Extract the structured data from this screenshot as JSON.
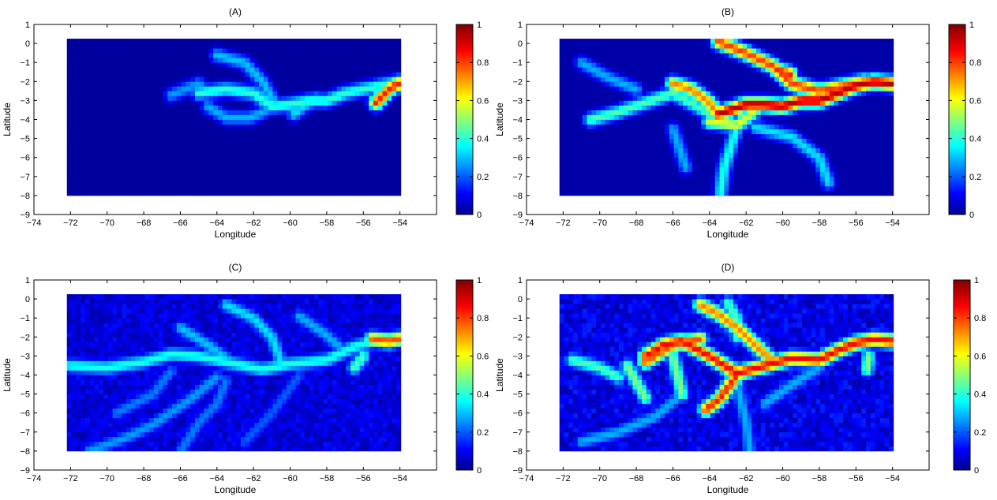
{
  "chart_data": [
    {
      "type": "heatmap",
      "title": "(A)",
      "xlabel": "Longitude",
      "ylabel": "Latitude",
      "xlim": [
        -74,
        -52
      ],
      "ylim": [
        -9,
        1
      ],
      "xticks": [
        -74,
        -72,
        -70,
        -68,
        -66,
        -64,
        -62,
        -60,
        -58,
        -56,
        -54
      ],
      "yticks": [
        1,
        0,
        -1,
        -2,
        -3,
        -4,
        -5,
        -6,
        -7,
        -8,
        -9
      ],
      "colorbar": {
        "range": [
          0,
          1
        ],
        "ticks": [
          "0",
          "0.2",
          "0.4",
          "0.6",
          "0.8",
          "1"
        ]
      },
      "grid": false,
      "domain_extent": {
        "lon": [
          -72.2,
          -54
        ],
        "lat": [
          -8,
          0.2
        ]
      },
      "background_value": 0.03,
      "noise": 0.0,
      "features": [
        {
          "lon": [
            -65,
            -63.5,
            -62,
            -61,
            -60,
            -59,
            -58,
            -57,
            -56,
            -55,
            -54.1
          ],
          "lat": [
            -2.6,
            -2.4,
            -2.6,
            -3.3,
            -3.2,
            -3.0,
            -3.0,
            -2.6,
            -2.4,
            -2.2,
            -2.0
          ],
          "value": 0.42
        },
        {
          "lon": [
            -64.5,
            -63.5,
            -62.2,
            -61.5,
            -61
          ],
          "lat": [
            -3.3,
            -3.9,
            -3.9,
            -3.6,
            -3.2
          ],
          "value": 0.3
        },
        {
          "lon": [
            -64,
            -62.5,
            -61.5,
            -60.8
          ],
          "lat": [
            -0.6,
            -1.0,
            -2.0,
            -3.2
          ],
          "value": 0.32
        },
        {
          "lon": [
            -66.5,
            -65,
            -64.5
          ],
          "lat": [
            -2.7,
            -2.1,
            -2.6
          ],
          "value": 0.28
        },
        {
          "lon": [
            -55.3,
            -54.6,
            -54.1
          ],
          "lat": [
            -3.1,
            -2.4,
            -2.1
          ],
          "value": 0.85
        },
        {
          "lon": [
            -59.8,
            -59.3,
            -58.5
          ],
          "lat": [
            -3.7,
            -3.3,
            -2.9
          ],
          "value": 0.35
        }
      ]
    },
    {
      "type": "heatmap",
      "title": "(B)",
      "xlabel": "Longitude",
      "ylabel": "Latitude",
      "xlim": [
        -74,
        -52
      ],
      "ylim": [
        -9,
        1
      ],
      "xticks": [
        -74,
        -72,
        -70,
        -68,
        -66,
        -64,
        -62,
        -60,
        -58,
        -56,
        -54
      ],
      "yticks": [
        1,
        0,
        -1,
        -2,
        -3,
        -4,
        -5,
        -6,
        -7,
        -8,
        -9
      ],
      "colorbar": {
        "range": [
          0,
          1
        ],
        "ticks": [
          "0",
          "0.2",
          "0.4",
          "0.6",
          "0.8",
          "1"
        ]
      },
      "grid": false,
      "domain_extent": {
        "lon": [
          -72.2,
          -54
        ],
        "lat": [
          -8,
          0.2
        ]
      },
      "background_value": 0.04,
      "noise": 0.0,
      "features": [
        {
          "lon": [
            -63.5,
            -62,
            -61,
            -60,
            -59,
            -58,
            -57,
            -56,
            -55,
            -54.1
          ],
          "lat": [
            -3.7,
            -3.2,
            -3.2,
            -3.3,
            -3.0,
            -3.0,
            -2.6,
            -2.2,
            -2.0,
            -2.1
          ],
          "value": 0.95
        },
        {
          "lon": [
            -63.5,
            -62,
            -60.5,
            -59.5,
            -58,
            -56.5,
            -55.5
          ],
          "lat": [
            0.1,
            -0.5,
            -1.2,
            -2.1,
            -2.5,
            -2.2,
            -2.0
          ],
          "value": 0.82
        },
        {
          "lon": [
            -66,
            -65,
            -64,
            -63.5
          ],
          "lat": [
            -2.1,
            -2.4,
            -3.1,
            -3.8
          ],
          "value": 0.75
        },
        {
          "lon": [
            -70.5,
            -69,
            -67.5,
            -66,
            -64.5,
            -63.5
          ],
          "lat": [
            -4.0,
            -3.6,
            -3.1,
            -2.6,
            -3.4,
            -4.0
          ],
          "value": 0.45
        },
        {
          "lon": [
            -62.5,
            -63.2,
            -63.4
          ],
          "lat": [
            -4.4,
            -6.5,
            -7.8
          ],
          "value": 0.4
        },
        {
          "lon": [
            -61.5,
            -59.5,
            -58,
            -57.5
          ],
          "lat": [
            -4.4,
            -4.9,
            -6.0,
            -7.3
          ],
          "value": 0.35
        },
        {
          "lon": [
            -60.3,
            -59.6
          ],
          "lat": [
            -1.4,
            -1.6
          ],
          "value": 0.85
        },
        {
          "lon": [
            -64,
            -62.5,
            -61.5
          ],
          "lat": [
            -4.1,
            -4.3,
            -3.5
          ],
          "value": 0.6
        },
        {
          "lon": [
            -66,
            -65.3
          ],
          "lat": [
            -4.5,
            -6.5
          ],
          "value": 0.3
        },
        {
          "lon": [
            -71,
            -69.5,
            -68
          ],
          "lat": [
            -1.0,
            -1.8,
            -2.4
          ],
          "value": 0.3
        }
      ]
    },
    {
      "type": "heatmap",
      "title": "(C)",
      "xlabel": "Longitude",
      "ylabel": "Latitude",
      "xlim": [
        -74,
        -52
      ],
      "ylim": [
        -9,
        1
      ],
      "xticks": [
        -74,
        -72,
        -70,
        -68,
        -66,
        -64,
        -62,
        -60,
        -58,
        -56,
        -54
      ],
      "yticks": [
        1,
        0,
        -1,
        -2,
        -3,
        -4,
        -5,
        -6,
        -7,
        -8,
        -9
      ],
      "colorbar": {
        "range": [
          0,
          1
        ],
        "ticks": [
          "0",
          "0.2",
          "0.4",
          "0.6",
          "0.8",
          "1"
        ]
      },
      "grid": false,
      "domain_extent": {
        "lon": [
          -72.2,
          -54
        ],
        "lat": [
          -8,
          0.2
        ]
      },
      "background_value": 0.09,
      "noise": 0.05,
      "features": [
        {
          "lon": [
            -72,
            -70,
            -68,
            -66.5,
            -65,
            -63,
            -61.5,
            -60,
            -58,
            -56.5,
            -55,
            -54.1
          ],
          "lat": [
            -3.5,
            -3.6,
            -3.3,
            -2.9,
            -3.0,
            -3.4,
            -3.7,
            -3.4,
            -3.2,
            -2.5,
            -2.1,
            -2.1
          ],
          "value": 0.4
        },
        {
          "lon": [
            -55.5,
            -54.6,
            -54.1
          ],
          "lat": [
            -2.1,
            -2.2,
            -2.1
          ],
          "value": 0.8
        },
        {
          "lon": [
            -63.5,
            -62,
            -61,
            -60.5
          ],
          "lat": [
            -0.3,
            -1.0,
            -2.0,
            -3.3
          ],
          "value": 0.35
        },
        {
          "lon": [
            -59.5,
            -58,
            -57
          ],
          "lat": [
            -0.9,
            -1.9,
            -2.8
          ],
          "value": 0.3
        },
        {
          "lon": [
            -66,
            -64.5,
            -63.5
          ],
          "lat": [
            -1.5,
            -2.4,
            -3.1
          ],
          "value": 0.32
        },
        {
          "lon": [
            -71,
            -69,
            -67.5,
            -65.5,
            -64
          ],
          "lat": [
            -8.0,
            -7.3,
            -6.6,
            -5.3,
            -4.1
          ],
          "value": 0.28
        },
        {
          "lon": [
            -66,
            -65,
            -64,
            -63.5
          ],
          "lat": [
            -8.0,
            -6.5,
            -5.5,
            -4.3
          ],
          "value": 0.25
        },
        {
          "lon": [
            -62.5,
            -61,
            -59.5
          ],
          "lat": [
            -7.5,
            -6.0,
            -4.0
          ],
          "value": 0.22
        },
        {
          "lon": [
            -69.5,
            -67.5,
            -66.5
          ],
          "lat": [
            -6.0,
            -5.0,
            -3.8
          ],
          "value": 0.25
        },
        {
          "lon": [
            -56,
            -56.5
          ],
          "lat": [
            -3.0,
            -3.6
          ],
          "value": 0.45
        }
      ]
    },
    {
      "type": "heatmap",
      "title": "(D)",
      "xlabel": "Longitude",
      "ylabel": "Latitude",
      "xlim": [
        -74,
        -52
      ],
      "ylim": [
        -9,
        1
      ],
      "xticks": [
        -74,
        -72,
        -70,
        -68,
        -66,
        -64,
        -62,
        -60,
        -58,
        -56,
        -54
      ],
      "yticks": [
        1,
        0,
        -1,
        -2,
        -3,
        -4,
        -5,
        -6,
        -7,
        -8,
        -9
      ],
      "colorbar": {
        "range": [
          0,
          1
        ],
        "ticks": [
          "0",
          "0.2",
          "0.4",
          "0.6",
          "0.8",
          "1"
        ]
      },
      "grid": false,
      "domain_extent": {
        "lon": [
          -72.2,
          -54
        ],
        "lat": [
          -8,
          0.2
        ]
      },
      "background_value": 0.1,
      "noise": 0.06,
      "features": [
        {
          "lon": [
            -67.5,
            -66.5,
            -65.5,
            -64,
            -62.5,
            -61,
            -59.5,
            -58,
            -57,
            -56,
            -55,
            -54.1
          ],
          "lat": [
            -3.0,
            -2.4,
            -2.2,
            -3.0,
            -3.9,
            -3.5,
            -3.1,
            -3.2,
            -2.7,
            -2.3,
            -2.1,
            -2.2
          ],
          "value": 0.88
        },
        {
          "lon": [
            -62.5,
            -63.5,
            -64.2
          ],
          "lat": [
            -4.0,
            -5.3,
            -5.8
          ],
          "value": 0.85
        },
        {
          "lon": [
            -64.5,
            -63.5,
            -62.5,
            -61.5,
            -60.5
          ],
          "lat": [
            -0.3,
            -0.8,
            -1.5,
            -2.4,
            -3.3
          ],
          "value": 0.75
        },
        {
          "lon": [
            -67.5,
            -66,
            -64.5
          ],
          "lat": [
            -3.3,
            -2.4,
            -2.1
          ],
          "value": 0.8
        },
        {
          "lon": [
            -71.5,
            -70,
            -69
          ],
          "lat": [
            -3.2,
            -3.6,
            -4.1
          ],
          "value": 0.45
        },
        {
          "lon": [
            -68.5,
            -67.5
          ],
          "lat": [
            -3.5,
            -5.2
          ],
          "value": 0.5
        },
        {
          "lon": [
            -66,
            -65.5
          ],
          "lat": [
            -3.0,
            -5.0
          ],
          "value": 0.5
        },
        {
          "lon": [
            -63,
            -62.5,
            -62.5
          ],
          "lat": [
            -0.2,
            -1.0,
            -2.0
          ],
          "value": 0.45
        },
        {
          "lon": [
            -62.5,
            -62,
            -61.8
          ],
          "lat": [
            -4.5,
            -6.5,
            -8.0
          ],
          "value": 0.3
        },
        {
          "lon": [
            -71,
            -69,
            -67,
            -65.5
          ],
          "lat": [
            -7.5,
            -7.0,
            -6.2,
            -5.0
          ],
          "value": 0.3
        },
        {
          "lon": [
            -61,
            -59.5,
            -58
          ],
          "lat": [
            -5.5,
            -4.5,
            -3.6
          ],
          "value": 0.3
        },
        {
          "lon": [
            -55.3,
            -55.4
          ],
          "lat": [
            -3.0,
            -3.7
          ],
          "value": 0.5
        }
      ]
    }
  ]
}
